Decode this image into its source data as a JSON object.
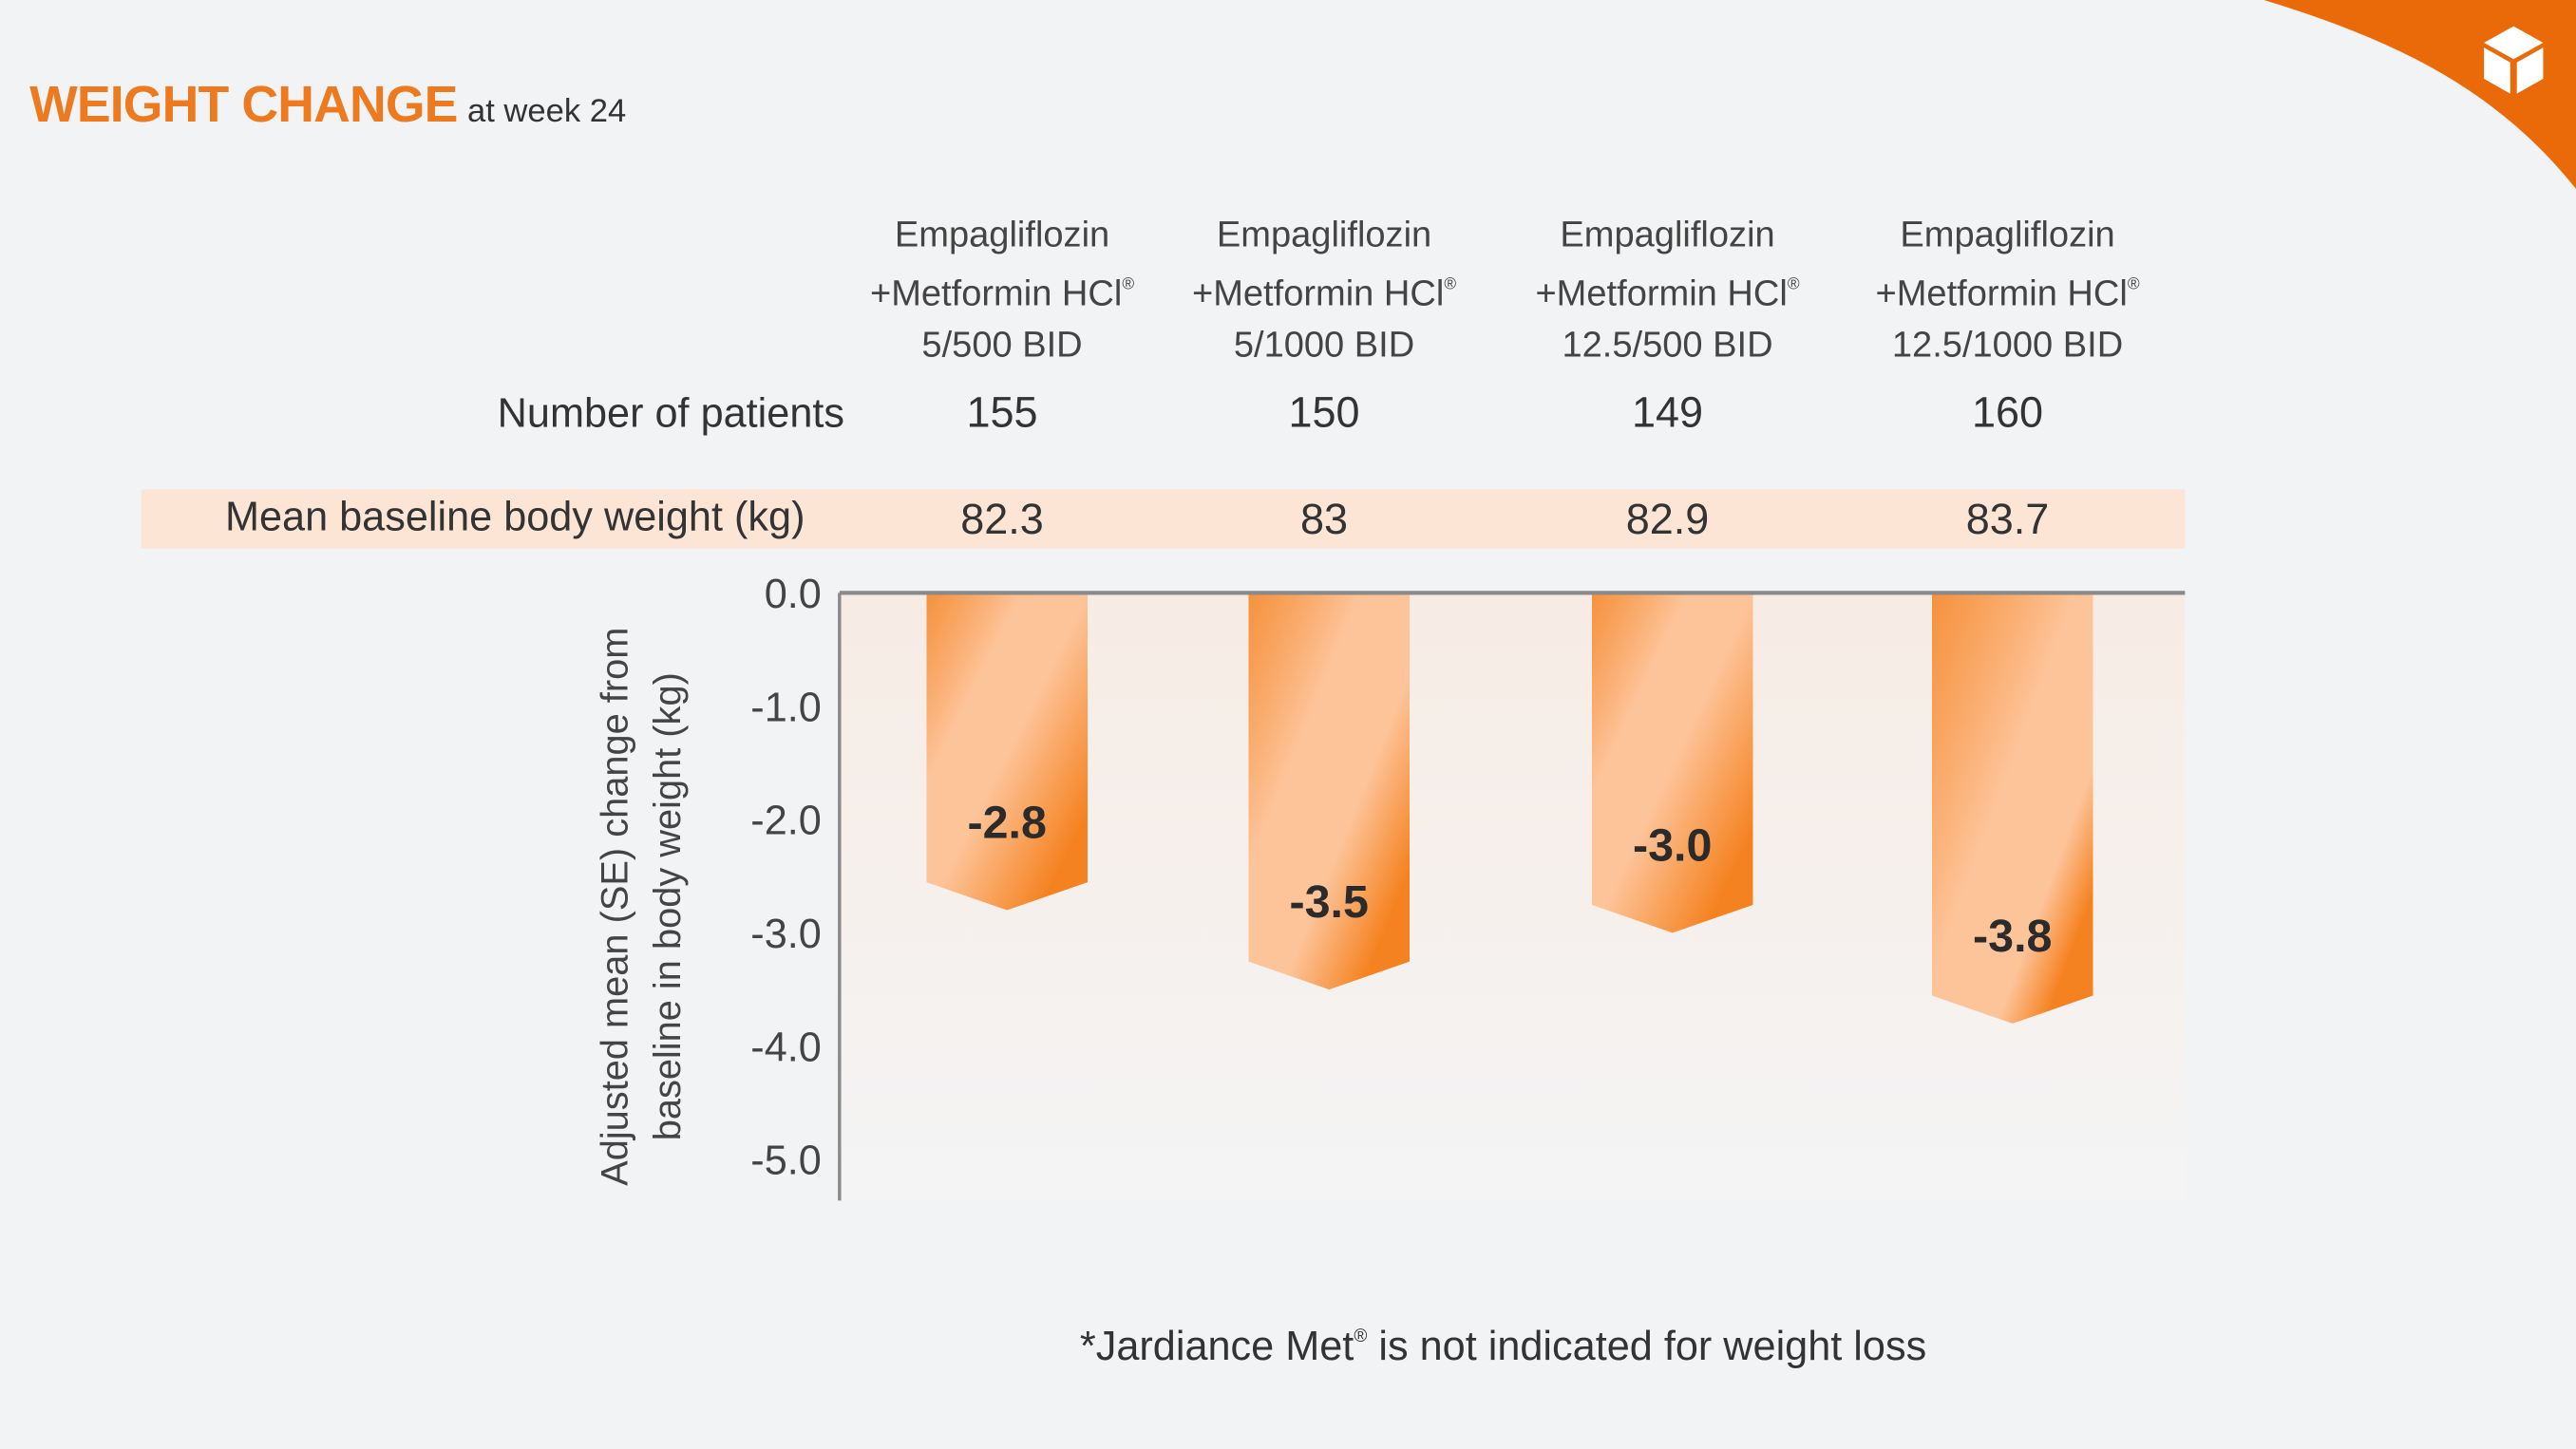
{
  "header": {
    "title": "WEIGHT CHANGE",
    "subtitle": "at week 24"
  },
  "columns": [
    {
      "line1": "Empagliflozin",
      "line2": "+Metformin HCl",
      "mark": "®",
      "line3": "5/500 BID"
    },
    {
      "line1": "Empagliflozin",
      "line2": "+Metformin HCl",
      "mark": "®",
      "line3": "5/1000 BID"
    },
    {
      "line1": "Empagliflozin",
      "line2": "+Metformin HCl",
      "mark": "®",
      "line3": "12.5/500 BID"
    },
    {
      "line1": "Empagliflozin",
      "line2": "+Metformin HCl",
      "mark": "®",
      "line3": "12.5/1000 BID"
    }
  ],
  "rows": {
    "patients": {
      "label": "Number of patients",
      "values": [
        "155",
        "150",
        "149",
        "160"
      ]
    },
    "baseline": {
      "label": "Mean baseline body weight (kg)",
      "values": [
        "82.3",
        "83",
        "82.9",
        "83.7"
      ]
    }
  },
  "chart_data": {
    "type": "bar",
    "categories": [
      "5/500 BID",
      "5/1000 BID",
      "12.5/500 BID",
      "12.5/1000 BID"
    ],
    "values": [
      -2.8,
      -3.5,
      -3.0,
      -3.8
    ],
    "data_labels": [
      "-2.8",
      "-3.5",
      "-3.0",
      "-3.8"
    ],
    "ylabel_line1": "Adjusted mean (SE) change from",
    "ylabel_line2": "baseline in body weight (kg)",
    "ylim": [
      -5.0,
      0.0
    ],
    "yticks": [
      "0.0",
      "-1.0",
      "-2.0",
      "-3.0",
      "-4.0",
      "-5.0"
    ],
    "grid": false,
    "colors": {
      "bar": "#f58220",
      "bar_light": "#fdc49a",
      "axis": "#8a8a8a"
    }
  },
  "footnote": {
    "text_before": "*Jardiance Met",
    "mark": "®",
    "text_after": " is not indicated for weight loss"
  },
  "brand": {
    "corner_color": "#ea6a0a",
    "icon": "cube-icon"
  }
}
